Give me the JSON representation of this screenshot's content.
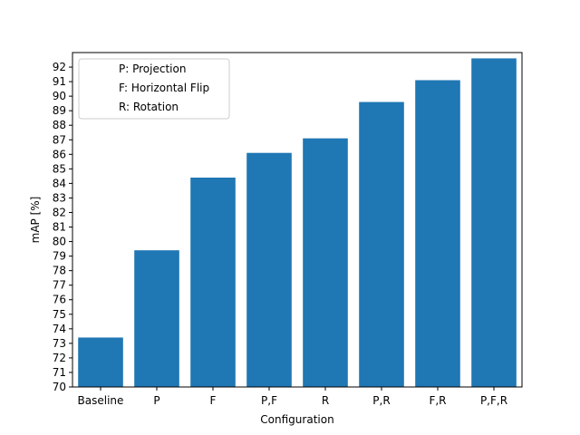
{
  "chart_data": {
    "type": "bar",
    "title": "",
    "xlabel": "Configuration",
    "ylabel": "mAP [%]",
    "categories": [
      "Baseline",
      "P",
      "F",
      "P,F",
      "R",
      "P,R",
      "F,R",
      "P,F,R"
    ],
    "values": [
      73.4,
      79.4,
      84.4,
      86.1,
      87.1,
      89.6,
      91.1,
      92.6
    ],
    "ylim": [
      70,
      93
    ],
    "yticks": [
      70,
      71,
      72,
      73,
      74,
      75,
      76,
      77,
      78,
      79,
      80,
      81,
      82,
      83,
      84,
      85,
      86,
      87,
      88,
      89,
      90,
      91,
      92
    ],
    "bar_color": "#1f77b4",
    "grid": false,
    "legend": {
      "placement": "top-left",
      "entries": [
        "P: Projection",
        "F: Horizontal Flip",
        "R: Rotation"
      ]
    }
  }
}
